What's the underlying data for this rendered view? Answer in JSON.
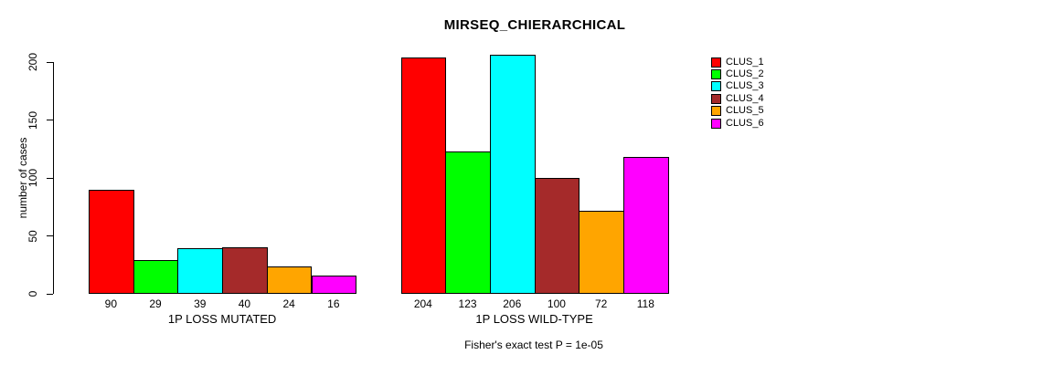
{
  "chart_data": {
    "type": "bar",
    "title": "MIRSEQ_CHIERARCHICAL",
    "ylabel": "number of cases",
    "xlabel": "",
    "ylim": [
      0,
      200
    ],
    "y_ticks": [
      0,
      50,
      100,
      150,
      200
    ],
    "grid": false,
    "legend_position": "right",
    "series": [
      {
        "name": "CLUS_1",
        "color": "#FF0000"
      },
      {
        "name": "CLUS_2",
        "color": "#00FF00"
      },
      {
        "name": "CLUS_3",
        "color": "#00FFFF"
      },
      {
        "name": "CLUS_4",
        "color": "#A52A2A"
      },
      {
        "name": "CLUS_5",
        "color": "#FFA500"
      },
      {
        "name": "CLUS_6",
        "color": "#FF00FF"
      }
    ],
    "groups": [
      {
        "label": "1P LOSS MUTATED",
        "values": [
          90,
          29,
          39,
          40,
          24,
          16
        ]
      },
      {
        "label": "1P LOSS WILD-TYPE",
        "values": [
          204,
          123,
          206,
          100,
          72,
          118
        ]
      }
    ],
    "annotation": "Fisher's exact test P = 1e-05"
  },
  "colors": {
    "background": "#FFFFFF",
    "axis": "#000000",
    "bar_border": "#000000"
  }
}
